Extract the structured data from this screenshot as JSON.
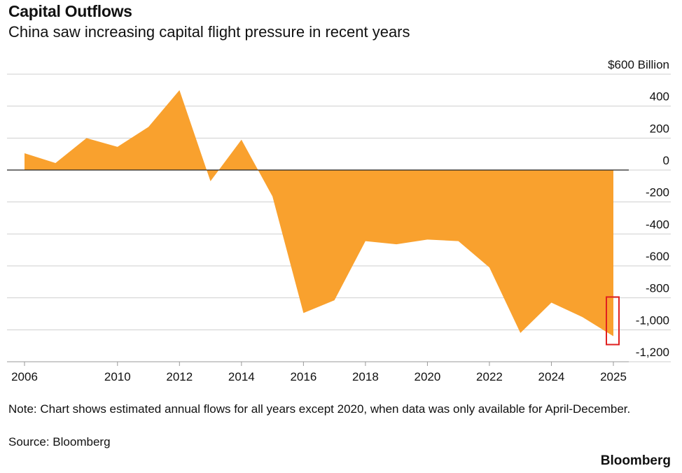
{
  "chart_data": {
    "type": "area",
    "title": "Capital Outflows",
    "subtitle": "China saw increasing capital flight pressure in recent years",
    "note": "Note: Chart shows estimated annual flows for all years except 2020, when data was only available for April-December.",
    "source": "Source: Bloomberg",
    "brand": "Bloomberg",
    "categories": [
      "2006",
      null,
      null,
      "2010",
      null,
      "2012",
      null,
      "2014",
      null,
      "2016",
      null,
      "2018",
      null,
      "2020",
      null,
      "2022",
      null,
      "2024",
      null,
      "2025"
    ],
    "values": [
      105,
      44,
      200,
      145,
      270,
      500,
      -70,
      190,
      -165,
      -895,
      -815,
      -445,
      -465,
      -435,
      -445,
      -610,
      -1020,
      -830,
      -920,
      -1040
    ],
    "color": "#f9a12e",
    "ylim": [
      -1200,
      600
    ],
    "yticks": [
      {
        "value": 600,
        "label": "$600 Billion"
      },
      400,
      200,
      0,
      -200,
      -400,
      -600,
      -800,
      {
        "value": -1000,
        "label": "-1,000"
      },
      {
        "value": -1200,
        "label": "-1,200"
      }
    ],
    "grid": true
  }
}
